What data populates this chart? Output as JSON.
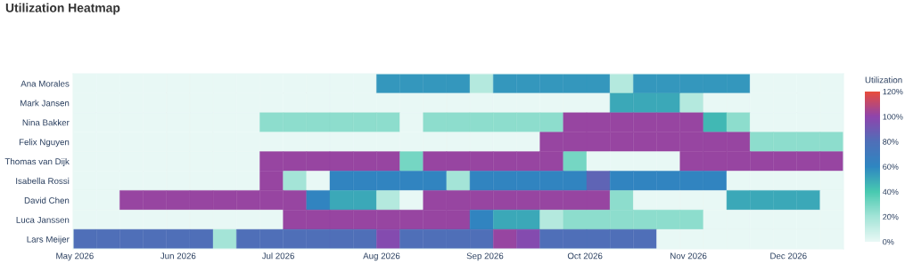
{
  "chart_data": {
    "type": "heatmap",
    "title": "Utilization Heatmap",
    "clabel": "Utilization",
    "x": [
      "2026-05-04",
      "2026-05-11",
      "2026-05-18",
      "2026-05-25",
      "2026-06-01",
      "2026-06-08",
      "2026-06-15",
      "2026-06-22",
      "2026-06-29",
      "2026-07-06",
      "2026-07-13",
      "2026-07-20",
      "2026-07-27",
      "2026-08-03",
      "2026-08-10",
      "2026-08-17",
      "2026-08-24",
      "2026-08-31",
      "2026-09-07",
      "2026-09-14",
      "2026-09-21",
      "2026-09-28",
      "2026-10-05",
      "2026-10-12",
      "2026-10-19",
      "2026-10-26",
      "2026-11-02",
      "2026-11-09",
      "2026-11-16",
      "2026-11-23",
      "2026-11-30",
      "2026-12-07",
      "2026-12-14"
    ],
    "y_categories": [
      "Ana Morales",
      "Mark Jansen",
      "Nina Bakker",
      "Felix Nguyen",
      "Thomas van Dijk",
      "Isabella Rossi",
      "David Chen",
      "Luca Janssen",
      "Lars Meijer"
    ],
    "cells": [
      [
        0,
        0,
        0,
        0,
        0,
        0,
        0,
        0,
        0,
        0,
        0,
        0,
        0,
        55,
        55,
        55,
        55,
        15,
        55,
        55,
        55,
        55,
        55,
        15,
        55,
        55,
        55,
        55,
        55,
        0,
        0,
        0,
        0
      ],
      [
        0,
        0,
        0,
        0,
        0,
        0,
        0,
        0,
        0,
        0,
        0,
        0,
        0,
        0,
        0,
        0,
        0,
        0,
        0,
        0,
        0,
        0,
        0,
        50,
        50,
        50,
        15,
        0,
        0,
        0,
        0,
        0,
        0
      ],
      [
        0,
        0,
        0,
        0,
        0,
        0,
        0,
        0,
        25,
        25,
        25,
        25,
        25,
        25,
        0,
        25,
        25,
        25,
        25,
        25,
        25,
        102,
        102,
        102,
        102,
        102,
        102,
        45,
        25,
        0,
        0,
        0,
        0
      ],
      [
        0,
        0,
        0,
        0,
        0,
        0,
        0,
        0,
        0,
        0,
        0,
        0,
        0,
        0,
        0,
        0,
        0,
        0,
        0,
        0,
        102,
        102,
        102,
        102,
        102,
        102,
        102,
        102,
        102,
        25,
        25,
        25,
        25
      ],
      [
        0,
        0,
        0,
        0,
        0,
        0,
        0,
        0,
        102,
        102,
        102,
        102,
        102,
        102,
        30,
        102,
        102,
        102,
        102,
        102,
        102,
        30,
        0,
        0,
        0,
        0,
        102,
        102,
        102,
        102,
        102,
        102,
        102
      ],
      [
        0,
        0,
        0,
        0,
        0,
        0,
        0,
        0,
        102,
        20,
        0,
        62,
        62,
        62,
        62,
        62,
        20,
        62,
        62,
        62,
        62,
        62,
        85,
        62,
        62,
        62,
        62,
        62,
        0,
        0,
        0,
        0,
        0
      ],
      [
        0,
        0,
        102,
        102,
        102,
        102,
        102,
        102,
        102,
        102,
        62,
        50,
        50,
        15,
        0,
        102,
        102,
        102,
        102,
        102,
        102,
        102,
        102,
        25,
        0,
        0,
        0,
        0,
        50,
        50,
        50,
        50,
        0
      ],
      [
        0,
        0,
        0,
        0,
        0,
        0,
        0,
        0,
        0,
        102,
        102,
        102,
        102,
        102,
        102,
        102,
        102,
        62,
        50,
        50,
        15,
        25,
        25,
        25,
        25,
        25,
        25,
        0,
        0,
        0,
        0,
        0,
        0
      ],
      [
        80,
        80,
        80,
        80,
        80,
        80,
        20,
        80,
        80,
        80,
        80,
        80,
        80,
        97,
        80,
        80,
        80,
        80,
        102,
        97,
        80,
        80,
        80,
        80,
        80,
        0,
        0,
        0,
        0,
        0,
        0,
        0,
        0
      ]
    ],
    "xlim": [
      "2026-04-30T12:00",
      "2026-12-17T12:00"
    ],
    "xticks": [
      {
        "value": "2026-05-01",
        "label": "May 2026"
      },
      {
        "value": "2026-06-01",
        "label": "Jun 2026"
      },
      {
        "value": "2026-07-01",
        "label": "Jul 2026"
      },
      {
        "value": "2026-08-01",
        "label": "Aug 2026"
      },
      {
        "value": "2026-09-01",
        "label": "Sep 2026"
      },
      {
        "value": "2026-10-01",
        "label": "Oct 2026"
      },
      {
        "value": "2026-11-01",
        "label": "Nov 2026"
      },
      {
        "value": "2026-12-01",
        "label": "Dec 2026"
      }
    ],
    "clim": [
      0,
      120
    ],
    "cticks": [
      {
        "value": 0,
        "label": "0%"
      },
      {
        "value": 20,
        "label": "20%"
      },
      {
        "value": 40,
        "label": "40%"
      },
      {
        "value": 60,
        "label": "60%"
      },
      {
        "value": 80,
        "label": "80%"
      },
      {
        "value": 100,
        "label": "100%"
      },
      {
        "value": 120,
        "label": "120%"
      }
    ]
  }
}
